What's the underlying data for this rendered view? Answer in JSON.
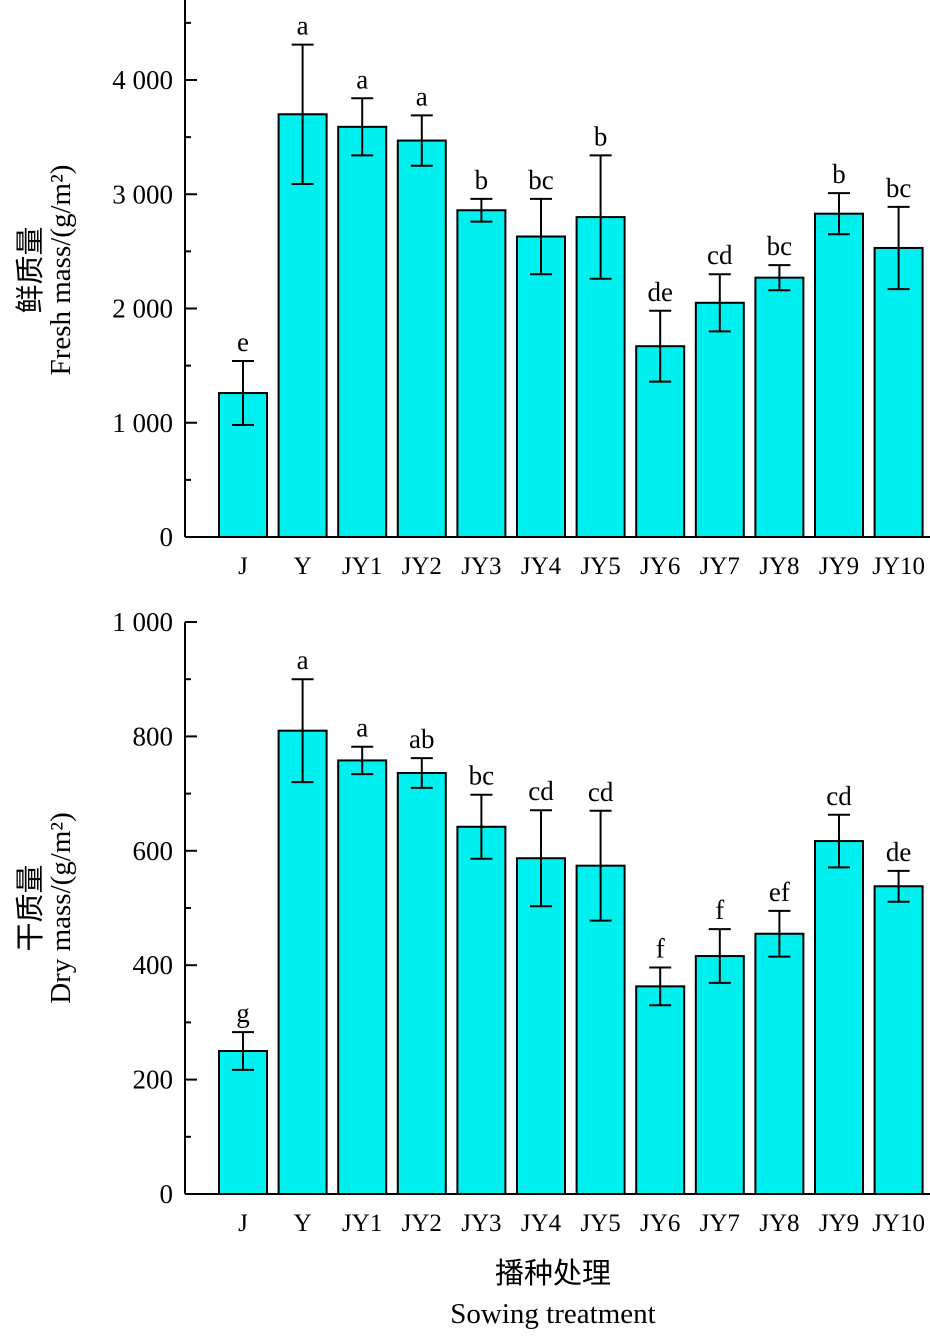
{
  "chart_data": [
    {
      "type": "bar",
      "id": "fresh",
      "ylabel_cn": "鲜质量",
      "ylabel": "Fresh mass/(g/m²)",
      "categories": [
        "J",
        "Y",
        "JY1",
        "JY2",
        "JY3",
        "JY4",
        "JY5",
        "JY6",
        "JY7",
        "JY8",
        "JY9",
        "JY10"
      ],
      "values": [
        1260,
        3700,
        3590,
        3470,
        2860,
        2630,
        2800,
        1670,
        2050,
        2270,
        2830,
        2530
      ],
      "errors": [
        280,
        610,
        250,
        220,
        100,
        330,
        540,
        310,
        250,
        110,
        180,
        360
      ],
      "significance": [
        "e",
        "a",
        "a",
        "a",
        "b",
        "bc",
        "b",
        "de",
        "cd",
        "bc",
        "b",
        "bc"
      ],
      "ylim": [
        0,
        4800
      ],
      "yticks": [
        0,
        1000,
        2000,
        3000,
        4000
      ],
      "ytick_labels": [
        "0",
        "1 000",
        "2 000",
        "3 000",
        "4 000"
      ],
      "minor_step": 500
    },
    {
      "type": "bar",
      "id": "dry",
      "ylabel_cn": "干质量",
      "ylabel": "Dry mass/(g/m²)",
      "categories": [
        "J",
        "Y",
        "JY1",
        "JY2",
        "JY3",
        "JY4",
        "JY5",
        "JY6",
        "JY7",
        "JY8",
        "JY9",
        "JY10"
      ],
      "values": [
        250,
        810,
        758,
        736,
        642,
        587,
        574,
        363,
        416,
        455,
        617,
        538
      ],
      "errors": [
        33,
        90,
        24,
        26,
        56,
        84,
        96,
        33,
        47,
        40,
        46,
        27
      ],
      "significance": [
        "g",
        "a",
        "a",
        "ab",
        "bc",
        "cd",
        "cd",
        "f",
        "f",
        "ef",
        "cd",
        "de"
      ],
      "ylim": [
        0,
        1000
      ],
      "yticks": [
        0,
        200,
        400,
        600,
        800,
        1000
      ],
      "ytick_labels": [
        "0",
        "200",
        "400",
        "600",
        "800",
        "1 000"
      ],
      "minor_step": 100
    }
  ],
  "xlabel_cn": "播种处理",
  "xlabel": "Sowing treatment",
  "colors": {
    "bar": "#00f0f0",
    "stroke": "#000000"
  }
}
